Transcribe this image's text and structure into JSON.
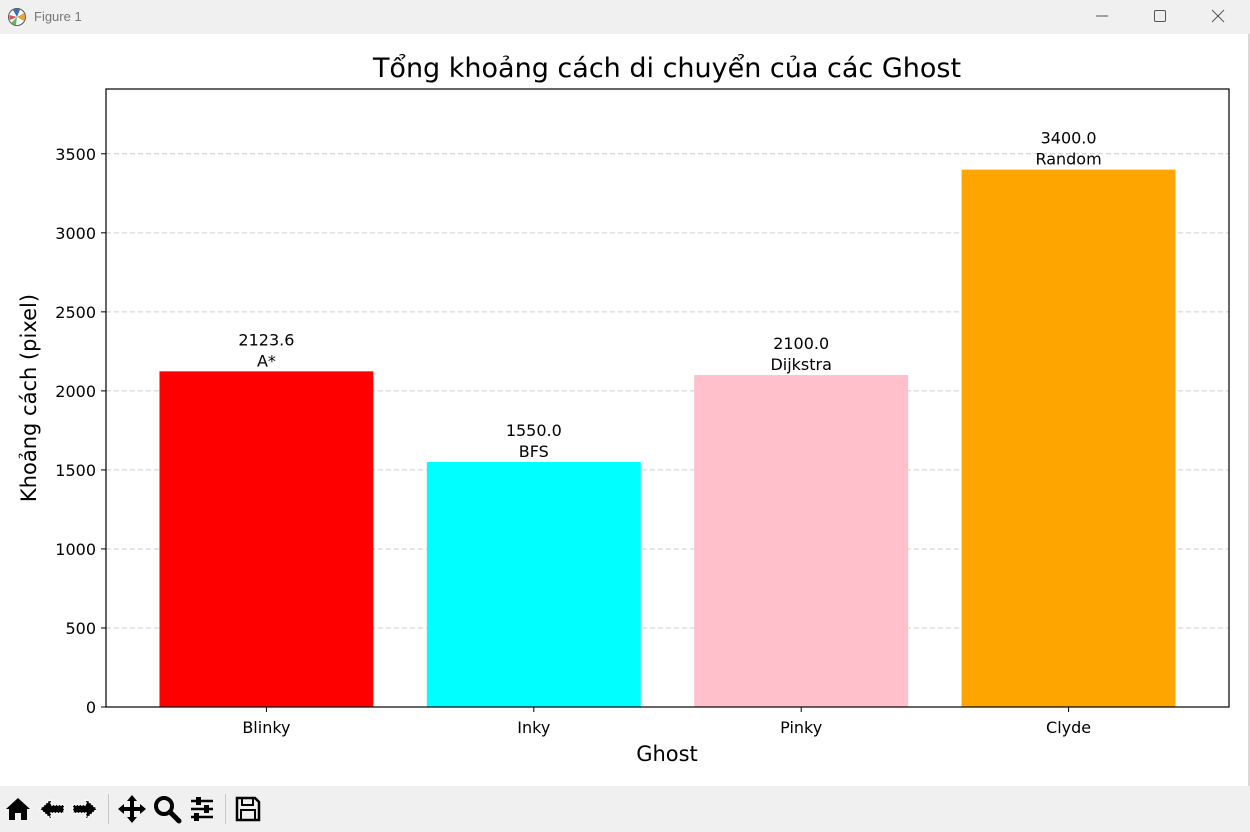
{
  "window": {
    "title": "Figure 1",
    "controls": [
      "minimize",
      "maximize",
      "close"
    ]
  },
  "toolbar": {
    "tools": [
      {
        "name": "home-icon",
        "tooltip": "Home"
      },
      {
        "name": "back-arrow-icon",
        "tooltip": "Back"
      },
      {
        "name": "forward-arrow-icon",
        "tooltip": "Forward"
      },
      {
        "name": "pan-move-icon",
        "tooltip": "Pan"
      },
      {
        "name": "zoom-magnifier-icon",
        "tooltip": "Zoom"
      },
      {
        "name": "configure-sliders-icon",
        "tooltip": "Configure subplots"
      },
      {
        "name": "save-floppy-icon",
        "tooltip": "Save"
      }
    ]
  },
  "chart_data": {
    "type": "bar",
    "title": "Tổng khoảng cách di chuyển của các Ghost",
    "xlabel": "Ghost",
    "ylabel": "Khoảng cách (pixel)",
    "categories": [
      "Blinky",
      "Inky",
      "Pinky",
      "Clyde"
    ],
    "values": [
      2123.6,
      1550.0,
      2100.0,
      3400.0
    ],
    "value_labels": [
      "2123.6",
      "1550.0",
      "2100.0",
      "3400.0"
    ],
    "algorithm_labels": [
      "A*",
      "BFS",
      "Dijkstra",
      "Random"
    ],
    "colors": [
      "#ff0000",
      "#00ffff",
      "#ffc0cb",
      "#ffa500"
    ],
    "ylim": [
      0,
      3910
    ],
    "yticks": [
      0,
      500,
      1000,
      1500,
      2000,
      2500,
      3000,
      3500
    ],
    "grid": {
      "axis": "y",
      "style": "dashed",
      "color": "#cccccc"
    },
    "legend": "none"
  }
}
